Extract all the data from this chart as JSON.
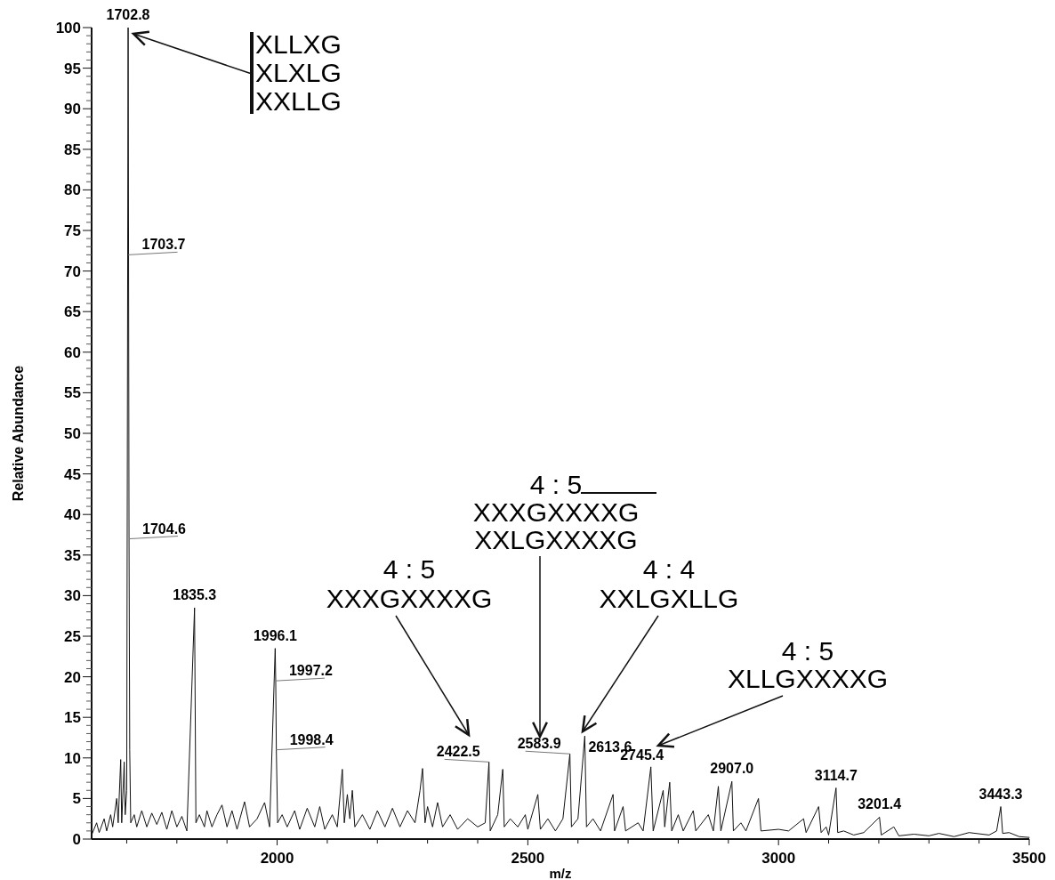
{
  "chart_data": {
    "type": "line",
    "xlabel": "m/z",
    "ylabel": "Relative Abundance",
    "xlim": [
      1630,
      3500
    ],
    "ylim": [
      0,
      100
    ],
    "xticks": [
      {
        "value": 1700,
        "label": null
      },
      {
        "value": 1800,
        "label": null
      },
      {
        "value": 1900,
        "label": null
      },
      2000,
      {
        "value": 2100,
        "label": null
      },
      {
        "value": 2200,
        "label": null
      },
      {
        "value": 2300,
        "label": null
      },
      {
        "value": 2400,
        "label": null
      },
      2500,
      {
        "value": 2600,
        "label": null
      },
      {
        "value": 2700,
        "label": null
      },
      {
        "value": 2800,
        "label": null
      },
      {
        "value": 2900,
        "label": null
      },
      3000,
      {
        "value": 3100,
        "label": null
      },
      {
        "value": 3200,
        "label": null
      },
      {
        "value": 3300,
        "label": null
      },
      {
        "value": 3400,
        "label": null
      },
      3500
    ],
    "yticks": [
      0,
      5,
      10,
      15,
      20,
      25,
      30,
      35,
      40,
      45,
      50,
      55,
      60,
      65,
      70,
      75,
      80,
      85,
      90,
      95,
      100
    ],
    "marker": "none",
    "grid": false,
    "series": [
      {
        "color": "#111111",
        "x": [
          1630,
          1640,
          1645,
          1655,
          1660,
          1668,
          1672,
          1680,
          1683,
          1688,
          1690,
          1695,
          1697,
          1700,
          1702.8,
          1703.7,
          1704.6,
          1706,
          1708,
          1715,
          1720,
          1730,
          1740,
          1750,
          1760,
          1770,
          1780,
          1790,
          1800,
          1810,
          1820,
          1835.3,
          1838,
          1845,
          1855,
          1860,
          1870,
          1880,
          1890,
          1900,
          1910,
          1920,
          1935,
          1945,
          1960,
          1975,
          1985,
          1996.1,
          1997.2,
          1998.4,
          2001,
          2010,
          2020,
          2035,
          2045,
          2060,
          2075,
          2085,
          2095,
          2110,
          2120,
          2130,
          2134,
          2140,
          2145,
          2150,
          2155,
          2170,
          2185,
          2200,
          2215,
          2230,
          2245,
          2260,
          2275,
          2285,
          2290,
          2295,
          2300,
          2310,
          2320,
          2330,
          2345,
          2360,
          2380,
          2400,
          2415,
          2422.5,
          2425,
          2440,
          2450,
          2453,
          2465,
          2480,
          2495,
          2500,
          2520,
          2525,
          2540,
          2555,
          2570,
          2583.9,
          2587,
          2600,
          2613.6,
          2617,
          2630,
          2645,
          2670,
          2673,
          2690,
          2695,
          2720,
          2730,
          2745.4,
          2750,
          2770,
          2773,
          2783,
          2787,
          2800,
          2810,
          2830,
          2835,
          2860,
          2870,
          2880,
          2885,
          2907,
          2910,
          2925,
          2935,
          2960,
          2965,
          3000,
          3020,
          3050,
          3055,
          3080,
          3085,
          3095,
          3100,
          3114.7,
          3118,
          3130,
          3150,
          3170,
          3201.4,
          3205,
          3230,
          3240,
          3270,
          3300,
          3320,
          3350,
          3380,
          3420,
          3435,
          3443.3,
          3447,
          3460,
          3480,
          3500
        ],
        "values": [
          0.5,
          2,
          0.8,
          2.5,
          1,
          3,
          1.5,
          5,
          2,
          9.8,
          2,
          9.5,
          3,
          6,
          100,
          72,
          37,
          11,
          2,
          3,
          1.5,
          3.5,
          1.5,
          3.2,
          1.8,
          3.3,
          1.2,
          3.5,
          1.5,
          2.8,
          1,
          28.5,
          2,
          3,
          1.5,
          3.5,
          1.5,
          3,
          4.2,
          1.5,
          3.5,
          1.2,
          4.6,
          1.5,
          2.5,
          4.5,
          1.5,
          23.5,
          19.5,
          11,
          2,
          3,
          1.5,
          3.5,
          1.2,
          3.8,
          1.5,
          4,
          1.2,
          3,
          1.5,
          8.6,
          2,
          5.5,
          2.5,
          6,
          1.5,
          3,
          1.2,
          3.5,
          1.5,
          3.8,
          1.5,
          3.5,
          2,
          6,
          8.7,
          2,
          4,
          1.5,
          4.5,
          1.5,
          3,
          1.2,
          2.5,
          1.5,
          2,
          9.5,
          1,
          3,
          8.6,
          1.5,
          2.5,
          1.5,
          3,
          1.2,
          5.5,
          1.2,
          2.5,
          1,
          2.5,
          10.5,
          1.5,
          2.5,
          12.7,
          1.5,
          2.5,
          1,
          5.5,
          1,
          4,
          1,
          2,
          1,
          8.9,
          1,
          6,
          1.5,
          7,
          1,
          3,
          1,
          3.5,
          1,
          3,
          1,
          6.5,
          1,
          7.1,
          1,
          2,
          1,
          5,
          1,
          1.2,
          1,
          2.5,
          0.8,
          4,
          0.8,
          1.5,
          0.5,
          6.3,
          0.8,
          1,
          0.5,
          0.8,
          2.7,
          0.5,
          1.5,
          0.4,
          0.6,
          0.4,
          0.7,
          0.3,
          0.8,
          0.5,
          1,
          4,
          0.7,
          0.8,
          0.3,
          0.2
        ]
      }
    ],
    "annotations": [
      "XLLXG\nXLXLG\nXXLLG",
      "4 : 5\nXXXGXXXXG",
      "4 : 5\nXXXGXXXXG\nXXLGXXXXG",
      "4 : 4\nXXLGXLLG",
      "4 : 5\nXLLGXXXXG",
      {
        "text": "1702.8",
        "x": 1702.8,
        "y": 100
      },
      {
        "text": "1703.7",
        "x": 1703.7,
        "y": 72
      },
      {
        "text": "1704.6",
        "x": 1704.6,
        "y": 37
      },
      {
        "text": "1835.3",
        "x": 1835.3,
        "y": 28.5
      },
      {
        "text": "1996.1",
        "x": 1996.1,
        "y": 23.5
      },
      {
        "text": "1997.2",
        "x": 1997.2,
        "y": 19.5
      },
      {
        "text": "1998.4",
        "x": 1998.4,
        "y": 11
      },
      {
        "text": "2422.5",
        "x": 2422.5,
        "y": 9.5
      },
      {
        "text": "2583.9",
        "x": 2583.9,
        "y": 10.5
      },
      {
        "text": "2613.6",
        "x": 2613.6,
        "y": 12.7
      },
      {
        "text": "2745.4",
        "x": 2745.4,
        "y": 8.9
      },
      {
        "text": "2907.0",
        "x": 2907.0,
        "y": 7.1
      },
      {
        "text": "3114.7",
        "x": 3114.7,
        "y": 6.3
      },
      {
        "text": "3201.4",
        "x": 3201.4,
        "y": 2.7
      },
      {
        "text": "3443.3",
        "x": 3443.3,
        "y": 4
      }
    ]
  }
}
